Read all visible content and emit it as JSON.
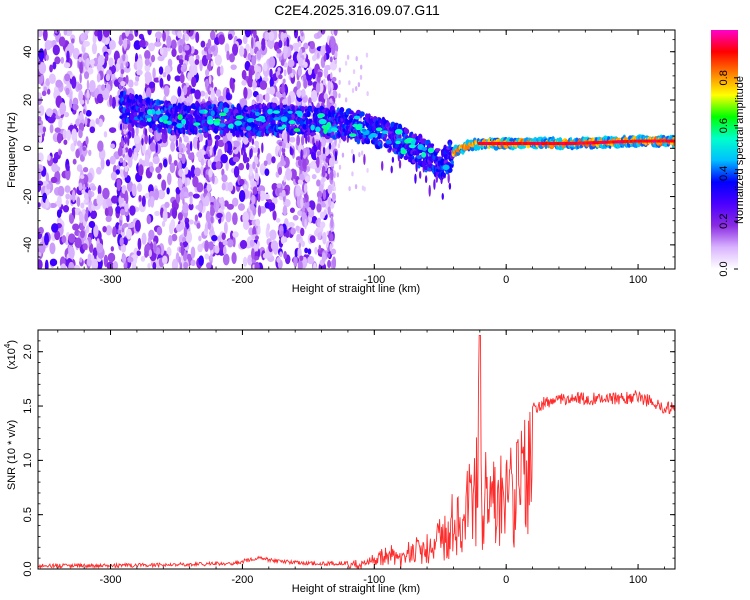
{
  "title": "C2E4.2025.316.09.07.G11",
  "chart_data": [
    {
      "type": "heatmap",
      "title": "C2E4.2025.316.09.07.G11",
      "xlabel": "Height of straight line (km)",
      "ylabel": "Frequency (Hz)",
      "xlim": [
        -355,
        128
      ],
      "ylim": [
        -50,
        49
      ],
      "xticks": [
        -300,
        -200,
        -100,
        0,
        100
      ],
      "yticks": [
        -40,
        -20,
        0,
        20,
        40
      ],
      "colorbar": {
        "label": "Normalized spectral amplitude",
        "range": [
          0.0,
          1.0
        ],
        "ticks": [
          0.0,
          0.2,
          0.4,
          0.6,
          0.8
        ],
        "tick_labels": [
          "0.0",
          "0.2",
          "0.4",
          "0.6",
          "0.8"
        ],
        "colormap": [
          "#ffffff",
          "#d9b3ff",
          "#8a2be2",
          "#4b00ff",
          "#0000ff",
          "#00bfff",
          "#00ffcc",
          "#00ff00",
          "#ffff00",
          "#ff8000",
          "#ff0000",
          "#ff00cc"
        ]
      },
      "ridge": {
        "x": [
          -290,
          -270,
          -250,
          -220,
          -200,
          -180,
          -150,
          -120,
          -100,
          -80,
          -60,
          -50,
          -45,
          -40,
          -30,
          -20,
          0,
          50,
          100,
          128
        ],
        "y": [
          17,
          14,
          12,
          13,
          11,
          12,
          11,
          10,
          7,
          3,
          -3,
          -7,
          -5,
          -2,
          1,
          2,
          2,
          2,
          3,
          3
        ]
      }
    },
    {
      "type": "line",
      "xlabel": "Height of straight line (km)",
      "ylabel": "SNR (10 * v/v)",
      "multiplier_label": "(x10",
      "multiplier_exp": "4",
      "xlim": [
        -355,
        128
      ],
      "ylim": [
        0,
        2.2
      ],
      "xticks": [
        -300,
        -200,
        -100,
        0,
        100
      ],
      "yticks": [
        0.0,
        0.5,
        1.0,
        1.5,
        2.0
      ],
      "ytick_labels": [
        "0.0",
        "0.5",
        "1.0",
        "1.5",
        "2.0"
      ],
      "color": "#ff2a2a",
      "envelope": {
        "x": [
          -355,
          -300,
          -250,
          -210,
          -200,
          -190,
          -170,
          -150,
          -130,
          -110,
          -100,
          -90,
          -80,
          -70,
          -60,
          -50,
          -45,
          -40,
          -35,
          -30,
          -25,
          -22,
          -20,
          -18,
          -15,
          -10,
          0,
          10,
          20,
          30,
          50,
          80,
          100,
          110,
          120,
          128
        ],
        "y": [
          0.03,
          0.03,
          0.04,
          0.05,
          0.07,
          0.1,
          0.07,
          0.05,
          0.05,
          0.07,
          0.15,
          0.22,
          0.18,
          0.28,
          0.32,
          0.45,
          0.55,
          0.7,
          0.75,
          0.95,
          1.0,
          1.4,
          2.1,
          0.9,
          1.15,
          1.05,
          1.05,
          1.3,
          1.48,
          1.55,
          1.58,
          1.58,
          1.6,
          1.55,
          1.5,
          1.5
        ]
      }
    }
  ]
}
